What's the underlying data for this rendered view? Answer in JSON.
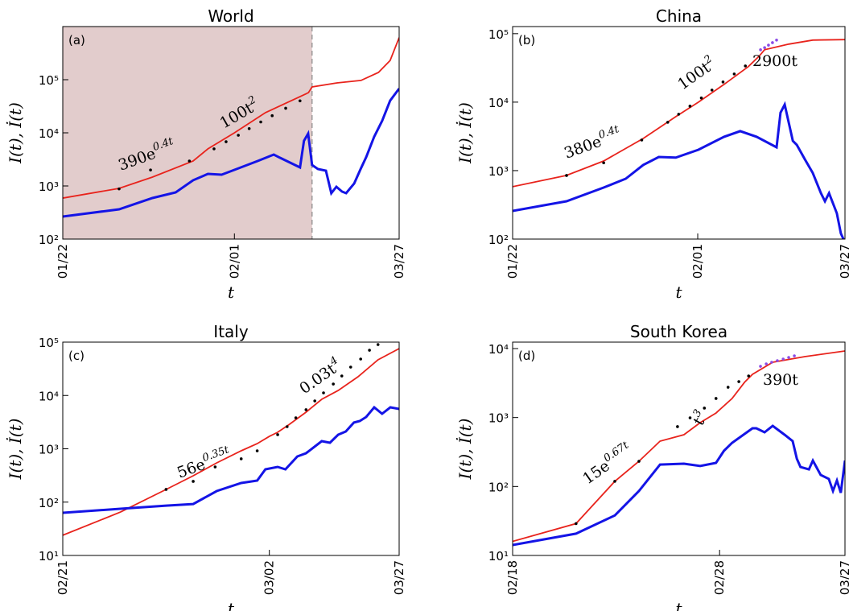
{
  "chart_data": [
    {
      "type": "line",
      "title": "World",
      "panel_label": "(a)",
      "ylabel": "I(t), İ(t)",
      "xlabel": "t",
      "xscale": "log",
      "yscale": "log",
      "xlim": [
        2,
        67
      ],
      "ylim": [
        100,
        1000000
      ],
      "xticks": [
        {
          "value": 2,
          "label": "01/22"
        },
        {
          "value": 12,
          "label": "02/01"
        },
        {
          "value": 67,
          "label": "03/27"
        }
      ],
      "yticks": [
        {
          "value": 100,
          "label": "10²"
        },
        {
          "value": 1000,
          "label": "10³"
        },
        {
          "value": 10000,
          "label": "10⁴"
        },
        {
          "value": 100000,
          "label": "10⁵"
        }
      ],
      "shade": {
        "xlim": [
          2,
          27
        ],
        "color": "#e2cccc"
      },
      "series": [
        {
          "color": "#e8231c",
          "style": "line",
          "x": [
            2,
            3.6,
            5.1,
            7.8,
            9.1,
            12,
            16.6,
            23,
            26,
            27,
            35,
            45,
            54,
            61,
            67
          ],
          "values": [
            590,
            900,
            1470,
            2950,
            5000,
            10000,
            24000,
            45000,
            57000,
            73000,
            87000,
            97000,
            137000,
            230000,
            620000
          ]
        },
        {
          "color": "#1414e6",
          "style": "line",
          "x": [
            2,
            3.6,
            5.1,
            6.5,
            7.8,
            9.1,
            10.5,
            12,
            15.3,
            18.1,
            19.3,
            23.8,
            24.8,
            25.9,
            27,
            28.7,
            31.2,
            33,
            34.8,
            36.9,
            38.5,
            41.9,
            44.8,
            47.5,
            51.6,
            56.1,
            61,
            67
          ],
          "values": [
            266,
            364,
            593,
            757,
            1280,
            1690,
            1630,
            2010,
            2950,
            3900,
            3400,
            2230,
            7050,
            9660,
            2480,
            2080,
            1940,
            730,
            966,
            783,
            730,
            1110,
            2080,
            3510,
            8400,
            16900,
            40400,
            68100
          ]
        },
        {
          "color": "#000000",
          "style": "dots",
          "x": [
            3.6,
            5,
            7.5
          ],
          "values": [
            880,
            2000,
            2950
          ]
        },
        {
          "color": "#000000",
          "style": "dots",
          "x": [
            9.7,
            11,
            12.5,
            14,
            15.8,
            17.8,
            20.5,
            23.8
          ],
          "values": [
            5000,
            6800,
            9000,
            12000,
            16000,
            21000,
            29000,
            40000
          ]
        }
      ],
      "annotations": [
        {
          "text": "390e",
          "sup": "0.4t"
        },
        {
          "text": "100t",
          "sup": "2"
        }
      ]
    },
    {
      "type": "line",
      "title": "China",
      "panel_label": "(b)",
      "ylabel": "I(t), İ(t)",
      "xlabel": "t",
      "xscale": "log",
      "yscale": "log",
      "xlim": [
        1.2,
        66.2
      ],
      "ylim": [
        100,
        127000
      ],
      "xticks": [
        {
          "value": 1.2,
          "label": "01/22"
        },
        {
          "value": 11.2,
          "label": "02/01"
        },
        {
          "value": 66.2,
          "label": "03/27"
        }
      ],
      "yticks": [
        {
          "value": 100,
          "label": "10²"
        },
        {
          "value": 1000,
          "label": "10³"
        },
        {
          "value": 10000,
          "label": "10⁴"
        },
        {
          "value": 100000,
          "label": "10⁵"
        }
      ],
      "series": [
        {
          "color": "#e8231c",
          "style": "line",
          "x": [
            1.2,
            2.3,
            3.6,
            5.8,
            8.6,
            11.3,
            15.4,
            20.6,
            23.5,
            25.1,
            33.6,
            44.9,
            66.2
          ],
          "values": [
            582,
            850,
            1380,
            2950,
            6140,
            10000,
            18200,
            33000,
            46900,
            58200,
            70300,
            80500,
            82000
          ]
        },
        {
          "color": "#1414e6",
          "style": "line",
          "x": [
            1.2,
            2.3,
            3.6,
            4.7,
            5.8,
            7,
            8.6,
            11.3,
            15.4,
            18.7,
            22.8,
            29,
            30.4,
            32,
            35.3,
            37,
            40.8,
            44.9,
            49.5,
            52,
            54.6,
            60,
            63,
            65
          ],
          "values": [
            258,
            357,
            566,
            762,
            1210,
            1580,
            1550,
            2020,
            3120,
            3770,
            3120,
            2190,
            7030,
            9220,
            2720,
            2380,
            1460,
            922,
            469,
            357,
            469,
            238,
            121,
            100
          ]
        },
        {
          "color": "#000000",
          "style": "dots",
          "x": [
            2.3,
            3.6,
            5.7
          ],
          "values": [
            850,
            1300,
            2800
          ]
        },
        {
          "color": "#000000",
          "style": "dots",
          "x": [
            7.8,
            8.9,
            10.2,
            11.7,
            13.3,
            15.2,
            17.4,
            19.9
          ],
          "values": [
            5080,
            6660,
            8740,
            11500,
            15000,
            19700,
            25800,
            33800
          ]
        },
        {
          "color": "#8a4be6",
          "style": "dots",
          "x": [
            23.9,
            25.1,
            26.3,
            27.6,
            29
          ],
          "values": [
            58200,
            62600,
            68000,
            74000,
            80600
          ]
        }
      ],
      "annotations": [
        {
          "text": "380e",
          "sup": "0.4t"
        },
        {
          "text": "100t",
          "sup": "2"
        },
        {
          "text": "2900t"
        }
      ]
    },
    {
      "type": "line",
      "title": "Italy",
      "panel_label": "(c)",
      "ylabel": "I(t), İ(t)",
      "xlabel": "t",
      "xscale": "log",
      "yscale": "log",
      "xlim": [
        2,
        37
      ],
      "ylim": [
        10,
        100000
      ],
      "xticks": [
        {
          "value": 2,
          "label": "02/21"
        },
        {
          "value": 12,
          "label": "03/02"
        },
        {
          "value": 37,
          "label": "03/27"
        }
      ],
      "yticks": [
        {
          "value": 10,
          "label": "10¹"
        },
        {
          "value": 100,
          "label": "10²"
        },
        {
          "value": 1000,
          "label": "10³"
        },
        {
          "value": 10000,
          "label": "10⁴"
        },
        {
          "value": 100000,
          "label": "10⁵"
        }
      ],
      "series": [
        {
          "color": "#e8231c",
          "style": "line",
          "x": [
            2,
            3.3,
            4.9,
            6.2,
            7.6,
            9.4,
            10.8,
            12,
            12.9,
            14.3,
            16.5,
            18.9,
            21.8,
            25.9,
            30.8,
            37
          ],
          "values": [
            23.9,
            65,
            173,
            312,
            545,
            917,
            1250,
            1710,
            2040,
            2890,
            4860,
            8480,
            12400,
            22400,
            46600,
            75700
          ]
        },
        {
          "color": "#1414e6",
          "style": "line",
          "x": [
            2,
            3.3,
            4.9,
            6.2,
            7.6,
            9.4,
            10.8,
            11.6,
            12.9,
            13.8,
            15.3,
            16.5,
            18.9,
            20.3,
            21.8,
            23.3,
            25,
            26.3,
            27.8,
            29.8,
            31.9,
            34.3,
            37
          ],
          "values": [
            63,
            75,
            86,
            92,
            161,
            228,
            253,
            412,
            457,
            412,
            720,
            827,
            1390,
            1300,
            1840,
            2110,
            3100,
            3320,
            3950,
            5990,
            4540,
            5990,
            5590
          ]
        },
        {
          "color": "#000000",
          "style": "dots",
          "x": [
            4.9,
            6.2,
            7.5,
            9.4,
            10.8
          ],
          "values": [
            173,
            245,
            457,
            648,
            917
          ]
        },
        {
          "color": "#000000",
          "style": "dots",
          "x": [
            12.9,
            14,
            15.1,
            16.5,
            17.8,
            19.2,
            20.9,
            22.5,
            24.3,
            26.5,
            28.6,
            30.8
          ],
          "values": [
            1840,
            2600,
            3810,
            5400,
            7900,
            11200,
            16400,
            23200,
            34000,
            48200,
            70600,
            90100
          ]
        }
      ],
      "annotations": [
        {
          "text": "56e",
          "sup": "0.35t"
        },
        {
          "text": "0.03t",
          "sup": "4"
        }
      ]
    },
    {
      "type": "line",
      "title": "South Korea",
      "panel_label": "(d)",
      "ylabel": "I(t), İ(t)",
      "xlabel": "t",
      "xscale": "log",
      "yscale": "log",
      "xlim": [
        1.5,
        39.5
      ],
      "ylim": [
        10,
        12400
      ],
      "xticks": [
        {
          "value": 1.5,
          "label": "02/18"
        },
        {
          "value": 11.5,
          "label": "02/28"
        },
        {
          "value": 39.5,
          "label": "03/27"
        }
      ],
      "yticks": [
        {
          "value": 10,
          "label": "10¹"
        },
        {
          "value": 100,
          "label": "10²"
        },
        {
          "value": 1000,
          "label": "10³"
        },
        {
          "value": 10000,
          "label": "10⁴"
        }
      ],
      "series": [
        {
          "color": "#e8231c",
          "style": "line",
          "x": [
            1.5,
            2.8,
            4.1,
            5.2,
            6.4,
            8.1,
            9.5,
            11.1,
            13,
            14.7,
            15.9,
            19.4,
            26.6,
            39.5
          ],
          "values": [
            16,
            29,
            119,
            232,
            454,
            564,
            843,
            1160,
            1890,
            3240,
            4230,
            6330,
            7640,
            9230
          ]
        },
        {
          "color": "#1414e6",
          "style": "line",
          "x": [
            1.5,
            2.8,
            4.1,
            5.2,
            6.4,
            8.1,
            9.5,
            11.1,
            12,
            13,
            15.9,
            16.5,
            17.9,
            19.4,
            21.8,
            23.6,
            24.6,
            25.5,
            27.7,
            28.8,
            31.1,
            33.7,
            35.1,
            36.5,
            37.9,
            39.5
          ],
          "values": [
            14.2,
            20.7,
            38,
            86,
            208,
            214,
            198,
            220,
            329,
            430,
            698,
            698,
            611,
            757,
            564,
            454,
            252,
            192,
            177,
            238,
            147,
            129,
            86,
            122,
            81,
            238
          ]
        },
        {
          "color": "#000000",
          "style": "dots",
          "x": [
            2.8,
            4.1,
            5.2
          ],
          "values": [
            29,
            119,
            232
          ]
        },
        {
          "color": "#000000",
          "style": "dots",
          "x": [
            7.6,
            8.6,
            9.9,
            11.1,
            12.5,
            13.9,
            15.3
          ],
          "values": [
            738,
            991,
            1370,
            1890,
            2750,
            3320,
            4010
          ]
        },
        {
          "color": "#8a4be6",
          "style": "dots",
          "x": [
            17.2,
            18.2,
            19.2,
            20.3,
            21.5,
            22.7,
            24
          ],
          "values": [
            5530,
            6000,
            6330,
            6680,
            7050,
            7430,
            7850
          ]
        }
      ],
      "annotations": [
        {
          "text": "15e",
          "sup": "0.67t"
        },
        {
          "text": "t",
          "sup": "3"
        },
        {
          "text": "390t"
        }
      ]
    }
  ]
}
